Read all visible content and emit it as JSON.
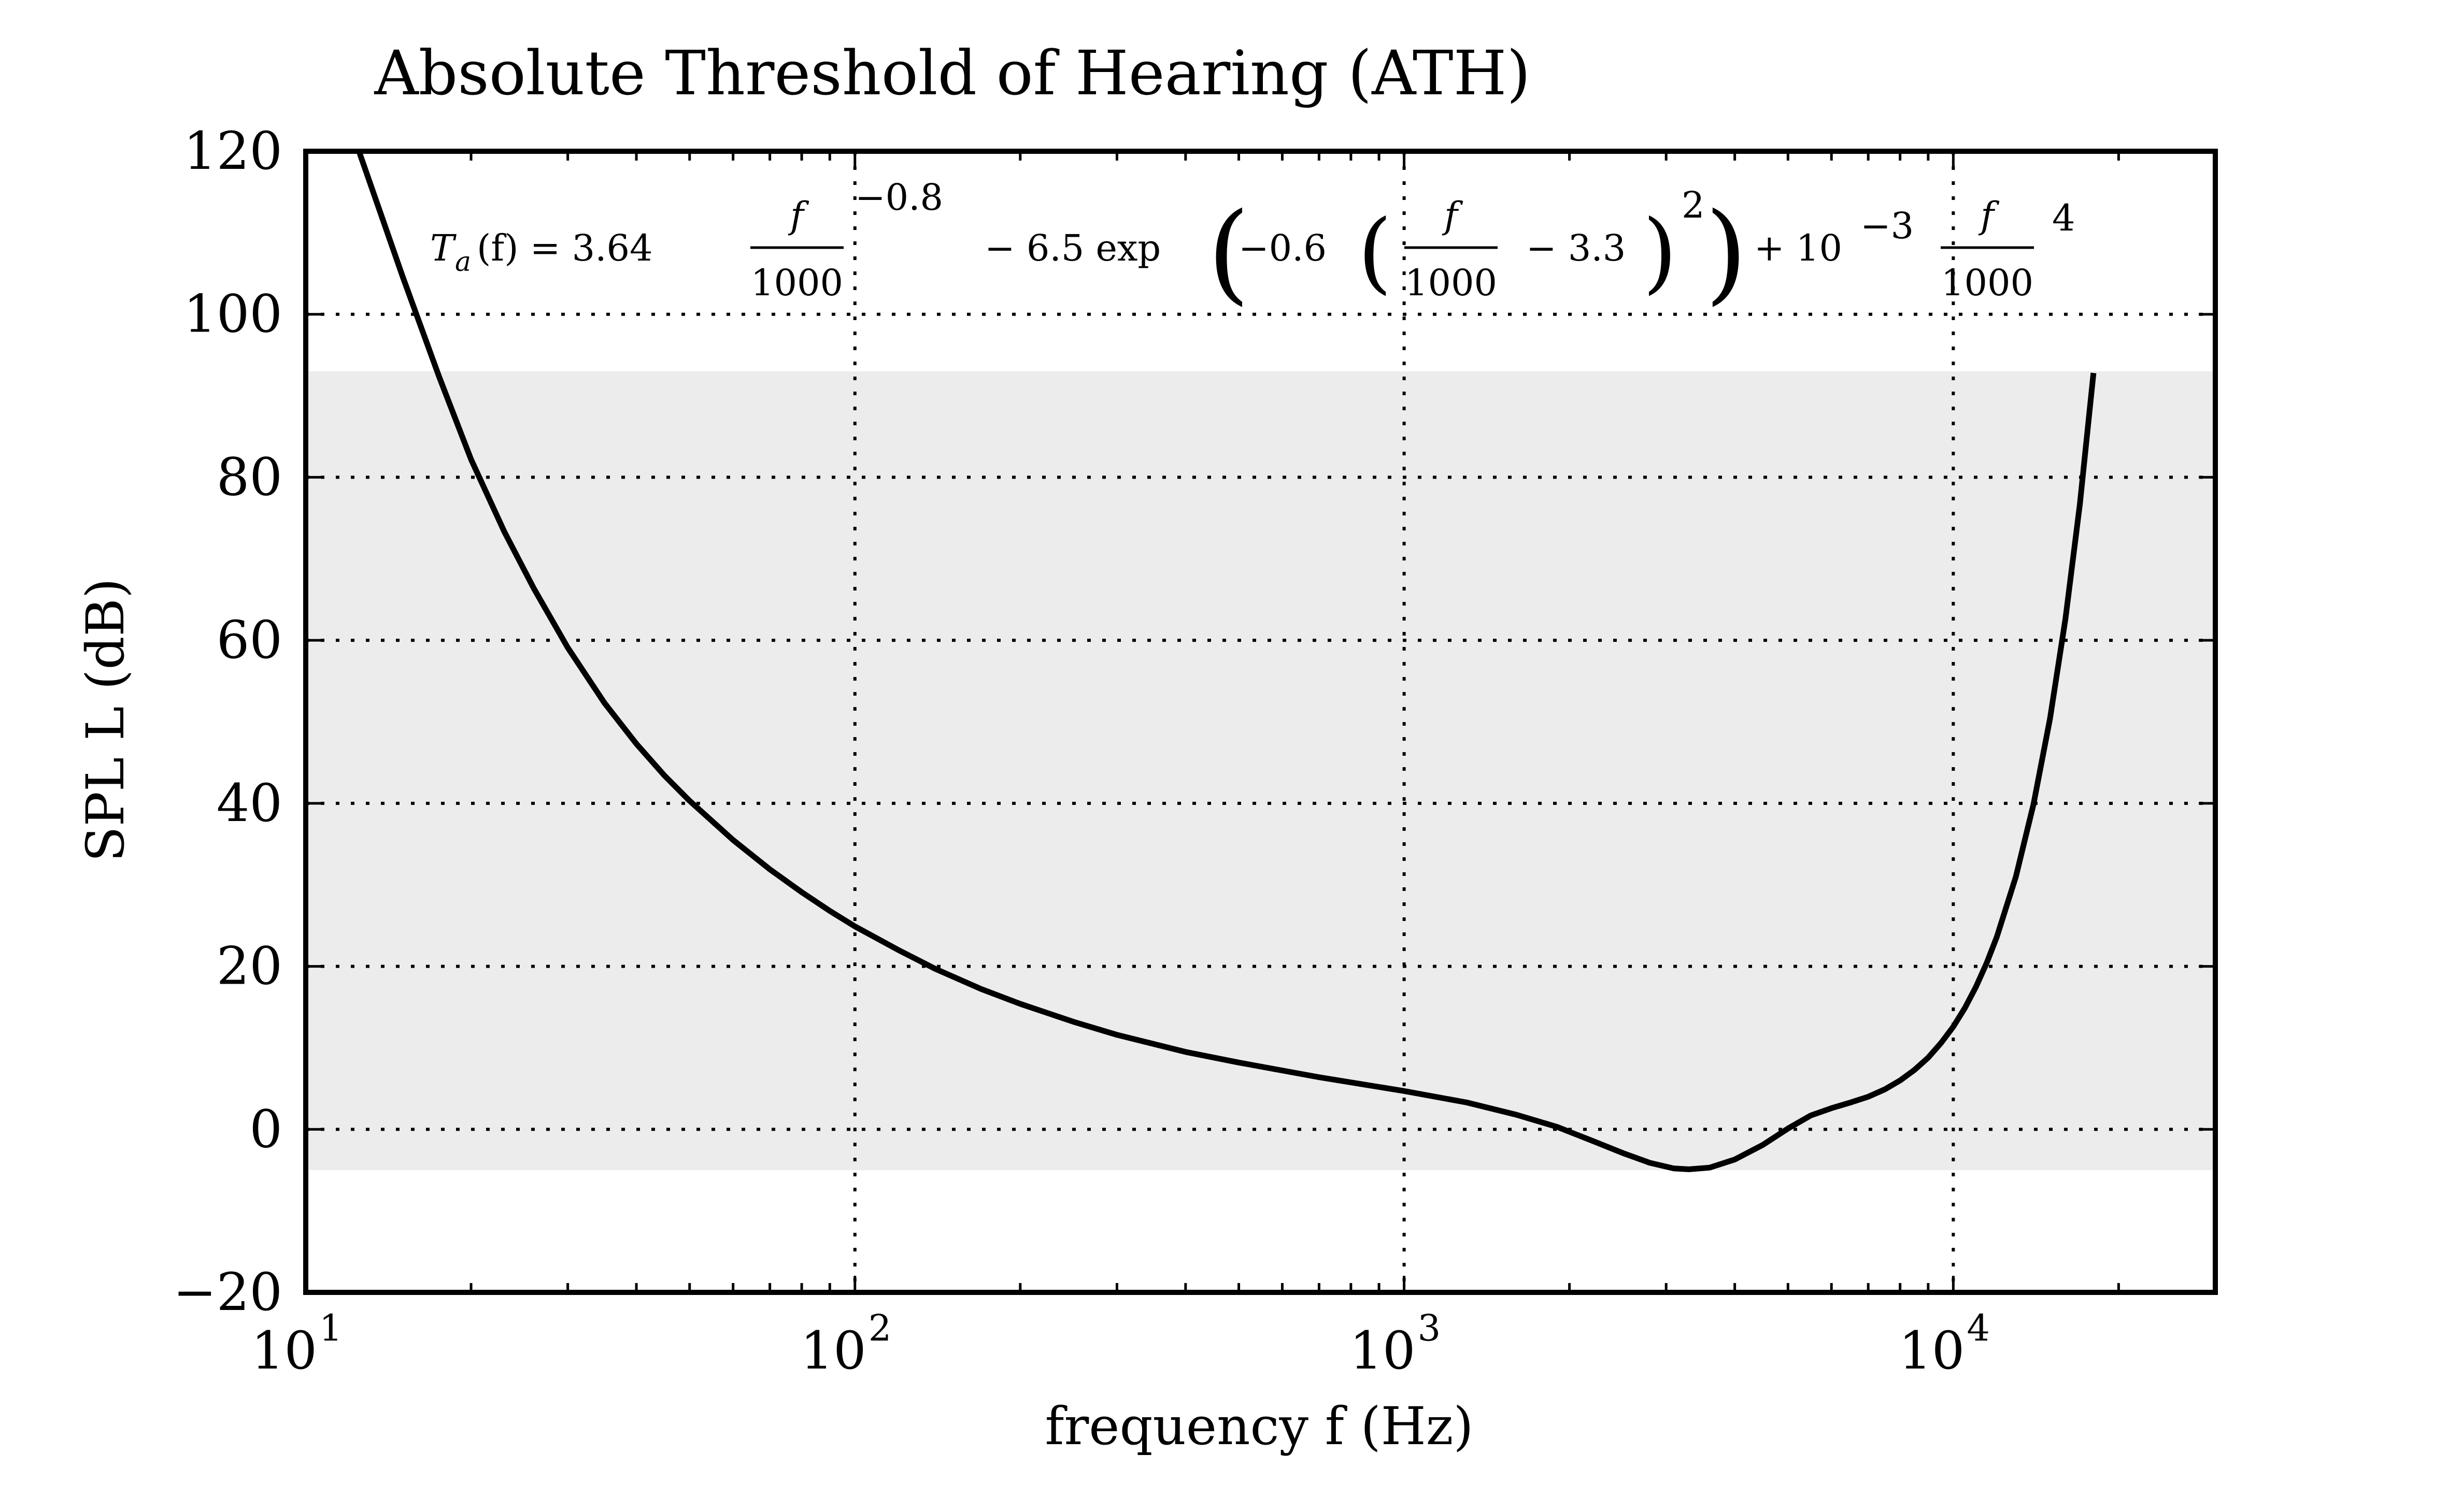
{
  "chart_data": {
    "type": "line",
    "title": "Absolute Threshold of Hearing (ATH)",
    "xlabel": "frequency f (Hz)",
    "ylabel": "SPL L (dB)",
    "xscale": "log",
    "xlim": [
      10,
      30000
    ],
    "ylim": [
      -20,
      120
    ],
    "x_ticks": [
      {
        "value": 10,
        "base": "10",
        "exp": "1"
      },
      {
        "value": 100,
        "base": "10",
        "exp": "2"
      },
      {
        "value": 1000,
        "base": "10",
        "exp": "3"
      },
      {
        "value": 10000,
        "base": "10",
        "exp": "4"
      }
    ],
    "y_ticks": [
      {
        "value": -20,
        "label": "−20"
      },
      {
        "value": 0,
        "label": "0"
      },
      {
        "value": 20,
        "label": "20"
      },
      {
        "value": 40,
        "label": "40"
      },
      {
        "value": 60,
        "label": "60"
      },
      {
        "value": 80,
        "label": "80"
      },
      {
        "value": 100,
        "label": "100"
      },
      {
        "value": 120,
        "label": "120"
      }
    ],
    "grid": true,
    "shaded_band": {
      "y_from": -5,
      "y_to": 93,
      "color": "#ececec"
    },
    "annotation": {
      "lhs": "T",
      "lhs_sub": "a",
      "lhs_arg": "(f) = 3.64",
      "frac_num": "f",
      "frac_den": "1000",
      "exp1": "−0.8",
      "term2": "− 6.5 exp",
      "inner1": "−0.6",
      "minus33": "− 3.3",
      "exp2": "2",
      "term3": "+ 10",
      "exp3": "−3",
      "exp4": "4"
    },
    "series": [
      {
        "color": "#000000",
        "x": [
          12.5,
          15,
          17.5,
          20,
          23,
          26,
          30,
          35,
          40,
          45,
          50,
          60,
          70,
          80,
          90,
          100,
          120,
          140,
          170,
          200,
          250,
          300,
          400,
          500,
          700,
          1000,
          1300,
          1600,
          1900,
          2200,
          2500,
          2800,
          3100,
          3300,
          3600,
          4000,
          4500,
          5000,
          5500,
          6000,
          6500,
          7000,
          7500,
          8000,
          8500,
          9000,
          9500,
          10000,
          10500,
          11000,
          11500,
          12000,
          13000,
          14000,
          15000,
          16000,
          17000,
          18000
        ],
        "y": [
          120,
          104.7,
          92.3,
          82.2,
          73.3,
          66.4,
          59.1,
          52.3,
          47.3,
          43.4,
          40.3,
          35.5,
          31.9,
          29.1,
          26.8,
          24.9,
          22.0,
          19.7,
          17.2,
          15.4,
          13.2,
          11.6,
          9.5,
          8.2,
          6.4,
          4.7,
          3.3,
          1.8,
          0.3,
          -1.4,
          -2.9,
          -4.1,
          -4.8,
          -4.9,
          -4.7,
          -3.7,
          -1.9,
          0.1,
          1.7,
          2.6,
          3.3,
          4.0,
          4.9,
          6.0,
          7.3,
          8.8,
          10.6,
          12.6,
          14.9,
          17.5,
          20.4,
          23.6,
          31.0,
          39.9,
          50.4,
          62.6,
          76.7,
          92.8
        ]
      }
    ]
  }
}
